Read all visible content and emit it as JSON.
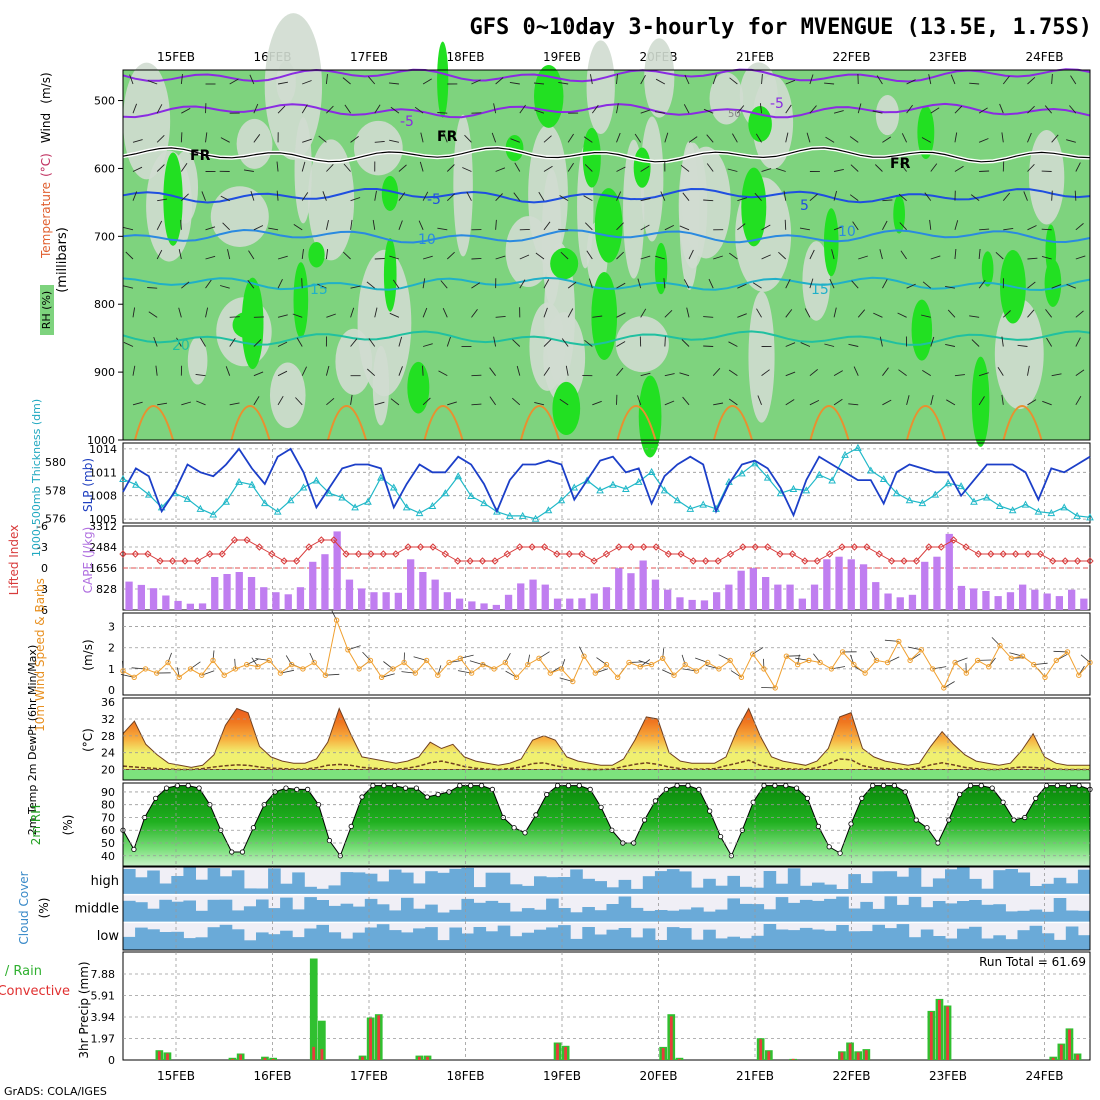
{
  "header": {
    "title": "GFS 0~10day 3-hourly for MVENGUE (13.5E, 1.75S)",
    "footer": "GrADS: COLA/IGES"
  },
  "dates": [
    "15FEB",
    "16FEB",
    "17FEB",
    "18FEB",
    "19FEB",
    "20FEB",
    "21FEB",
    "22FEB",
    "23FEB",
    "24FEB"
  ],
  "colors": {
    "rh_light": "#d0dcd0",
    "rh_mid": "#7ed37e",
    "rh_bright": "#22e022",
    "slp_line": "#1c3fc8",
    "thickness_line": "#20b8c8",
    "lifted_index": "#d83c3c",
    "cape_bar": "#c07ef0",
    "wind_line": "#f0a030",
    "temp_fill": "#f0f070",
    "temp_hot": "#e8501c",
    "rh_fill": "#20b020",
    "cloud_blue": "#6aaad8",
    "precip_total": "#30c030",
    "precip_conv": "#e83c3c"
  },
  "chart_data": [
    {
      "panel": "upper-air",
      "type": "heatmap",
      "y_label_parts": [
        "RH (%)",
        "Temperature",
        "(°C)",
        "Wind",
        "(m/s)"
      ],
      "y_unit_label": "(millibars)",
      "yticks": [
        "500",
        "600",
        "700",
        "800",
        "900",
        "1000"
      ],
      "isotherm_labels": [
        "-5",
        "-5",
        "FR",
        "FR",
        "FR",
        "-5",
        "5",
        "10",
        "10",
        "15",
        "15",
        "20",
        "50"
      ]
    },
    {
      "panel": "slp-thickness",
      "type": "line",
      "y_label_left": "1000-500mb Thickness (dm)",
      "y_label_right": "SLP (mb)",
      "yticks_left": [
        "576",
        "578",
        "580"
      ],
      "yticks_right": [
        "1005",
        "1008",
        "1011",
        "1014"
      ],
      "series": [
        {
          "name": "SLP (mb)",
          "values": [
            1008.5,
            1011.5,
            1010.5,
            1006,
            1008.5,
            1012,
            1011,
            1010.5,
            1012,
            1014,
            1011.5,
            1009.5,
            1013,
            1014,
            1011,
            1006.5,
            1009,
            1011.5,
            1012,
            1012,
            1011.5,
            1006.5,
            1009.5,
            1012,
            1011,
            1011,
            1013,
            1012,
            1009.5,
            1006,
            1010,
            1012,
            1012,
            1012.5,
            1012,
            1007.5,
            1010,
            1012.5,
            1013,
            1011,
            1011.5,
            1007,
            1010.5,
            1012,
            1013,
            1012,
            1006,
            1009.5,
            1012,
            1012.5,
            1011.5,
            1009,
            1005.5,
            1010,
            1013,
            1012,
            1011,
            1010,
            1010,
            1007,
            1011,
            1012,
            1011.5,
            1011,
            1011,
            1008,
            1010,
            1012,
            1012,
            1012,
            1011,
            1007.5,
            1011.5,
            1011,
            1012,
            1013
          ]
        },
        {
          "name": "1000-500mb Thickness (dm)",
          "values": [
            578.8,
            578.4,
            577.7,
            576.8,
            577.8,
            577.4,
            576.7,
            576.3,
            577.2,
            578.6,
            578.4,
            577.1,
            576.5,
            577.3,
            578.2,
            578.7,
            577.8,
            577.5,
            576.8,
            577.2,
            578.9,
            578.2,
            576.8,
            576.4,
            576.9,
            577.8,
            579.0,
            577.6,
            577.1,
            576.5,
            576.2,
            576.2,
            576.0,
            576.6,
            577.3,
            578.2,
            578.7,
            578.0,
            578.4,
            578.1,
            578.6,
            579.3,
            578.0,
            577.3,
            576.7,
            577.0,
            576.7,
            578.6,
            579.2,
            579.9,
            578.9,
            577.8,
            578.1,
            578.0,
            579.1,
            578.7,
            580.5,
            581.0,
            579.4,
            578.8,
            577.8,
            577.3,
            577.1,
            577.7,
            578.5,
            578.3,
            577.2,
            577.5,
            576.9,
            576.6,
            577.0,
            576.5,
            576.4,
            576.8,
            576.2,
            576.1
          ]
        }
      ]
    },
    {
      "panel": "stability",
      "type": "bar",
      "y_label_left": "Lifted Index",
      "y_label_right": "CAPE (J/kg)",
      "yticks_left": [
        "-6",
        "-3",
        "0",
        "3",
        "6"
      ],
      "yticks_right": [
        "828",
        "1656",
        "2484",
        "3312"
      ],
      "series": [
        {
          "name": "CAPE (J/kg)",
          "values": [
            1120,
            990,
            860,
            570,
            360,
            250,
            260,
            1300,
            1420,
            1500,
            1300,
            900,
            700,
            620,
            900,
            1900,
            2200,
            3100,
            1200,
            850,
            700,
            700,
            680,
            2000,
            1500,
            1200,
            700,
            450,
            340,
            260,
            200,
            600,
            1050,
            1200,
            1000,
            450,
            450,
            460,
            650,
            900,
            1650,
            1450,
            1950,
            1200,
            800,
            500,
            400,
            380,
            700,
            1000,
            1550,
            1650,
            1300,
            1000,
            1000,
            450,
            1000,
            2000,
            2100,
            2000,
            1800,
            1100,
            650,
            500,
            600,
            1900,
            2100,
            3000,
            950,
            850,
            750,
            550,
            700,
            1000,
            800,
            650,
            550,
            800,
            450
          ]
        },
        {
          "name": "Lifted Index",
          "values": [
            -2,
            -2,
            -2,
            -1,
            -1,
            -1,
            -1,
            -2,
            -2,
            -4,
            -4,
            -3,
            -2,
            -1,
            -1,
            -3,
            -4,
            -4,
            -2,
            -2,
            -2,
            -2,
            -2,
            -3,
            -3,
            -3,
            -2,
            -1,
            -1,
            -1,
            -1,
            -2,
            -3,
            -3,
            -3,
            -2,
            -2,
            -2,
            -1,
            -2,
            -3,
            -3,
            -3,
            -3,
            -2,
            -2,
            -1,
            -1,
            -1,
            -2,
            -3,
            -3,
            -3,
            -2,
            -2,
            -1,
            -1,
            -2,
            -3,
            -3,
            -3,
            -2,
            -1,
            -1,
            -1,
            -3,
            -3,
            -4,
            -3,
            -2,
            -2,
            -2,
            -2,
            -2,
            -2,
            -1,
            -1,
            -1,
            -1
          ]
        }
      ]
    },
    {
      "panel": "wind10m",
      "type": "line",
      "y_label": "10m Wind Speed & Barbs",
      "y_unit": "(m/s)",
      "yticks": [
        "0",
        "1",
        "2",
        "3"
      ],
      "series": [
        {
          "name": "10m Wind Speed",
          "values": [
            0.9,
            0.6,
            1.0,
            0.8,
            1.3,
            0.6,
            1.0,
            0.7,
            1.4,
            0.7,
            1.0,
            1.2,
            1.1,
            1.4,
            0.8,
            1.2,
            1.0,
            1.3,
            0.7,
            3.3,
            1.9,
            1.0,
            1.4,
            0.6,
            1.0,
            1.3,
            0.8,
            1.4,
            0.7,
            1.3,
            1.5,
            0.8,
            1.2,
            1.0,
            1.3,
            0.6,
            1.2,
            1.5,
            0.8,
            1.0,
            0.4,
            1.6,
            0.8,
            1.2,
            0.6,
            1.3,
            1.1,
            1.2,
            1.5,
            0.7,
            1.2,
            0.9,
            1.3,
            1.0,
            1.4,
            0.6,
            1.7,
            1.0,
            0.1,
            1.6,
            1.2,
            1.4,
            1.3,
            1.0,
            1.8,
            1.2,
            0.8,
            1.4,
            1.3,
            2.3,
            1.4,
            1.9,
            1.0,
            0.1,
            1.3,
            0.8,
            1.4,
            1.1,
            2.1,
            1.5,
            1.6,
            1.2,
            0.6,
            1.4,
            1.8,
            0.7,
            1.3
          ]
        }
      ]
    },
    {
      "panel": "temp2m",
      "type": "area",
      "y_label": "2m Temp 2m DewPt (6hr Min/Max)",
      "y_unit": "(°C)",
      "yticks": [
        "20",
        "24",
        "28",
        "32",
        "36"
      ],
      "series": [
        {
          "name": "2m Temp",
          "values": [
            28.5,
            31.5,
            26,
            23.5,
            21.5,
            21,
            20.5,
            21,
            23.5,
            30.5,
            34.5,
            33.5,
            25.5,
            23,
            22,
            21.5,
            21.5,
            22.5,
            26.5,
            34.5,
            28.5,
            23,
            22.5,
            22,
            21.5,
            22,
            23,
            26.5,
            25,
            26,
            23,
            22,
            21.5,
            21,
            21.5,
            22.5,
            27,
            28,
            27,
            23,
            22,
            21.5,
            21,
            21,
            22.5,
            27,
            32.5,
            32,
            24,
            22,
            21.5,
            21.5,
            21.5,
            23,
            29.5,
            34.5,
            28,
            23,
            22,
            21.5,
            21,
            22,
            25,
            32.5,
            33.5,
            25,
            23,
            22,
            21.5,
            21,
            21.5,
            25.5,
            29,
            26,
            23.5,
            22,
            21.5,
            21,
            21.5,
            24.5,
            28.5,
            23,
            21.5,
            21,
            21,
            21
          ]
        },
        {
          "name": "2m DewPt",
          "values": [
            20.8,
            20.6,
            20.4,
            20.2,
            20.1,
            20.0,
            20.0,
            20.2,
            20.6,
            20.9,
            21.1,
            21.0,
            20.6,
            20.3,
            20.2,
            20.1,
            20.1,
            20.4,
            21.0,
            21.2,
            21.0,
            20.5,
            20.3,
            20.1,
            20.1,
            20.3,
            20.8,
            21.6,
            22.0,
            21.4,
            20.7,
            20.3,
            20.1,
            20.0,
            20.2,
            20.6,
            21.4,
            21.6,
            20.9,
            20.4,
            20.1,
            20.0,
            20.0,
            20.1,
            20.7,
            21.2,
            21.6,
            21.2,
            20.6,
            20.2,
            20.1,
            20.1,
            20.2,
            20.9,
            21.5,
            22.2,
            21.0,
            20.5,
            20.2,
            20.1,
            20.1,
            20.4,
            21.3,
            22.5,
            22.3,
            20.9,
            20.4,
            20.2,
            20.1,
            20.1,
            20.3,
            21.1,
            21.6,
            21.1,
            20.5,
            20.2,
            20.0,
            20.0,
            20.3,
            20.6,
            20.5,
            20.3,
            20.1,
            20.0,
            20.0,
            20.0
          ]
        }
      ]
    },
    {
      "panel": "rh2m",
      "type": "area",
      "y_label": "2m RH",
      "y_unit": "(%)",
      "yticks": [
        "40",
        "50",
        "60",
        "70",
        "80",
        "90"
      ],
      "series": [
        {
          "name": "2m RH",
          "values": [
            60,
            45,
            70,
            85,
            93,
            95,
            95,
            93,
            80,
            60,
            43,
            43,
            62,
            80,
            90,
            93,
            92,
            92,
            80,
            52,
            40,
            63,
            86,
            95,
            95,
            95,
            93,
            93,
            86,
            88,
            90,
            95,
            95,
            95,
            92,
            70,
            62,
            58,
            72,
            88,
            95,
            95,
            95,
            92,
            78,
            60,
            50,
            50,
            68,
            83,
            92,
            95,
            95,
            92,
            75,
            55,
            40,
            60,
            82,
            95,
            95,
            95,
            93,
            85,
            63,
            47,
            42,
            65,
            85,
            95,
            95,
            95,
            90,
            68,
            62,
            50,
            68,
            88,
            95,
            95,
            93,
            82,
            68,
            70,
            85,
            95,
            95,
            95,
            95,
            92
          ]
        }
      ]
    },
    {
      "panel": "cloud",
      "type": "heatmap",
      "y_label": "Cloud Cover",
      "y_unit": "(%)",
      "rows": [
        "high",
        "middle",
        "low"
      ]
    },
    {
      "panel": "precip",
      "type": "bar",
      "y_label_left": "Total / Rain",
      "y_label_left2": "Convective",
      "y_label": "3hr Precip (mm)",
      "yticks": [
        "0",
        "1.97",
        "3.94",
        "5.91",
        "7.88"
      ],
      "run_total": "Run Total = 61.69",
      "series": [
        {
          "name": "Total / Rain",
          "values": [
            0,
            0,
            0,
            0,
            0.9,
            0.7,
            0,
            0,
            0,
            0,
            0,
            0,
            0,
            0.2,
            0.6,
            0,
            0,
            0.3,
            0.2,
            0,
            0,
            0,
            0,
            9.3,
            3.6,
            0,
            0,
            0,
            0,
            0.4,
            3.9,
            4.2,
            0,
            0,
            0,
            0,
            0.4,
            0.4,
            0,
            0,
            0,
            0,
            0,
            0,
            0,
            0,
            0,
            0,
            0,
            0,
            0,
            0,
            0,
            1.6,
            1.3,
            0,
            0,
            0,
            0,
            0,
            0,
            0,
            0,
            0,
            0,
            0,
            1.2,
            4.2,
            0.2,
            0,
            0,
            0,
            0,
            0,
            0,
            0,
            0,
            0,
            2.0,
            0.9,
            0,
            0,
            0.1,
            0,
            0,
            0,
            0,
            0,
            0.8,
            1.6,
            0.8,
            1.0,
            0,
            0,
            0,
            0,
            0,
            0,
            0,
            4.5,
            5.6,
            5.0,
            0,
            0,
            0,
            0,
            0,
            0,
            0,
            0,
            0,
            0,
            0,
            0,
            0.3,
            1.5,
            2.9,
            0.6,
            0
          ]
        },
        {
          "name": "Convective",
          "values": [
            0,
            0,
            0,
            0,
            0.8,
            0.6,
            0,
            0,
            0,
            0,
            0,
            0,
            0,
            0.1,
            0.5,
            0,
            0,
            0.2,
            0.1,
            0,
            0,
            0,
            0,
            1.2,
            1.0,
            0,
            0,
            0,
            0,
            0.3,
            3.8,
            4.1,
            0,
            0,
            0,
            0,
            0.3,
            0.3,
            0,
            0,
            0,
            0,
            0,
            0,
            0,
            0,
            0,
            0,
            0,
            0,
            0,
            0,
            0,
            1.5,
            1.2,
            0,
            0,
            0,
            0,
            0,
            0,
            0,
            0,
            0,
            0,
            0,
            1.1,
            4.0,
            0.1,
            0,
            0,
            0,
            0,
            0,
            0,
            0,
            0,
            0,
            1.9,
            0.8,
            0,
            0,
            0.1,
            0,
            0,
            0,
            0,
            0,
            0.7,
            1.5,
            0.7,
            0.9,
            0,
            0,
            0,
            0,
            0,
            0,
            0,
            4.4,
            5.5,
            4.9,
            0,
            0,
            0,
            0,
            0,
            0,
            0,
            0,
            0,
            0,
            0,
            0,
            0.2,
            1.4,
            2.8,
            0.5,
            0
          ]
        }
      ]
    }
  ]
}
